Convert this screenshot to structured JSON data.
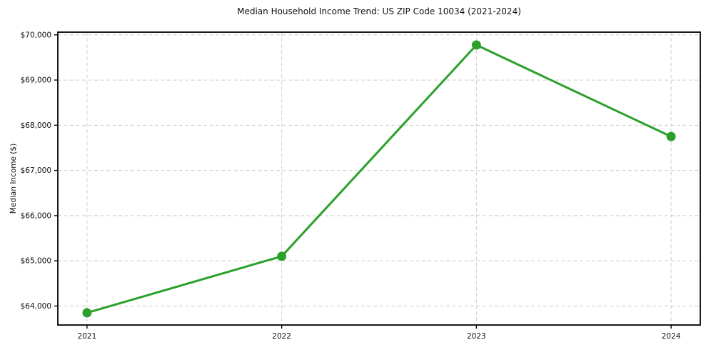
{
  "figure": {
    "background": "#ffffff"
  },
  "chart_data": {
    "type": "line",
    "title": "Median Household Income Trend: US ZIP Code 10034 (2021-2024)",
    "ylabel": "Median Income ($)",
    "xlabel": "",
    "x": [
      2021,
      2022,
      2023,
      2024
    ],
    "xtick_labels": [
      "2021",
      "2022",
      "2023",
      "2024"
    ],
    "series": [
      {
        "name": "median-household-income",
        "values": [
          63850,
          65100,
          69775,
          67750
        ]
      }
    ],
    "ytick_values": [
      64000,
      65000,
      66000,
      67000,
      68000,
      69000,
      70000
    ],
    "ytick_labels": [
      "$64,000",
      "$65,000",
      "$66,000",
      "$67,000",
      "$68,000",
      "$69,000",
      "$70,000"
    ],
    "xlim": [
      2020.85,
      2024.15
    ],
    "ylim": [
      63580,
      70060
    ],
    "grid": true,
    "grid_style": "dashed",
    "legend": "none",
    "marker": "circle",
    "colors": {
      "line": "#2ca02c",
      "marker": "#2ca02c",
      "grid": "#cdcdcd",
      "spine": "#000000",
      "tick": "#000000",
      "text": "#111111",
      "background": "#ffffff"
    },
    "style": {
      "line_width": 3,
      "marker_radius": 6.5,
      "grid_dash": "5 3.5",
      "tick_length": 5
    }
  }
}
